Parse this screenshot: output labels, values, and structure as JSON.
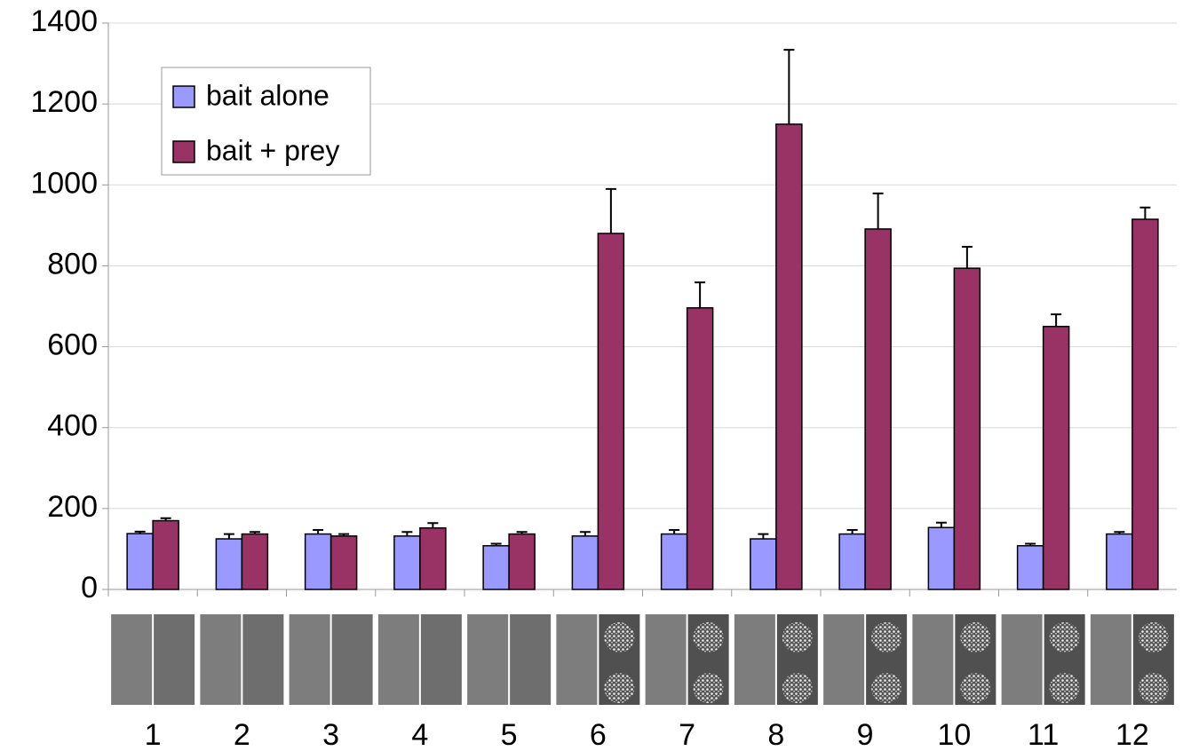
{
  "chart_data": {
    "type": "bar",
    "categories": [
      "1",
      "2",
      "3",
      "4",
      "5",
      "6",
      "7",
      "8",
      "9",
      "10",
      "11",
      "12"
    ],
    "series": [
      {
        "name": "bait alone",
        "color": "#9999ff",
        "values": [
          138,
          125,
          137,
          132,
          108,
          132,
          137,
          125,
          137,
          153,
          108,
          137
        ],
        "errors": [
          5,
          12,
          10,
          10,
          5,
          10,
          10,
          12,
          10,
          12,
          5,
          5
        ]
      },
      {
        "name": "bait + prey",
        "color": "#993366",
        "values": [
          170,
          137,
          132,
          152,
          137,
          880,
          696,
          1150,
          891,
          794,
          650,
          915
        ],
        "errors": [
          6,
          5,
          5,
          12,
          5,
          110,
          63,
          184,
          88,
          53,
          30,
          29
        ]
      }
    ],
    "ylim": [
      0,
      1400
    ],
    "yticks": [
      0,
      200,
      400,
      600,
      800,
      1000,
      1200,
      1400
    ],
    "grid": true,
    "legend": "upper left"
  }
}
